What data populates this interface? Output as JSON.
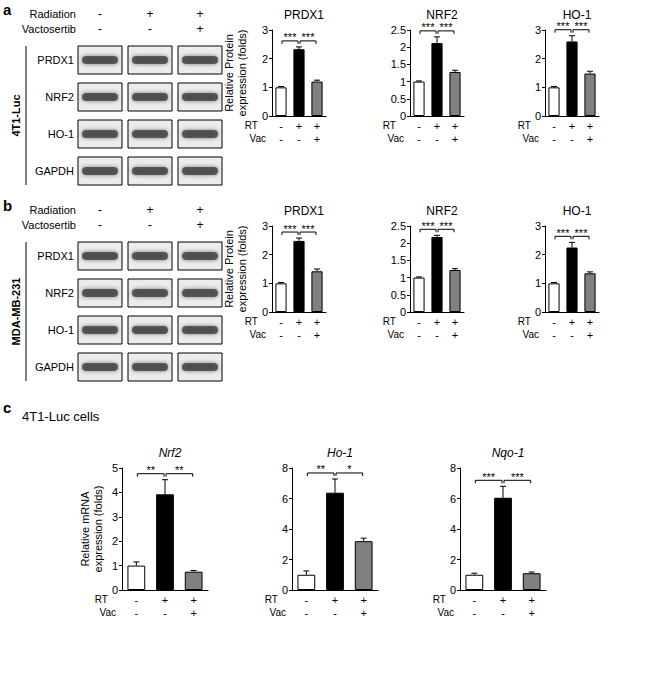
{
  "chart_data": [
    {
      "type": "bar",
      "title": "PRDX1",
      "ylabel": "Relative Protein expression (folds)",
      "x_label_rows": [
        {
          "label": "RT",
          "categories": [
            "-",
            "+",
            "+"
          ]
        },
        {
          "label": "Vac",
          "categories": [
            "-",
            "-",
            "+"
          ]
        }
      ],
      "values": [
        1.0,
        2.33,
        1.2
      ],
      "errors": [
        0.03,
        0.08,
        0.05
      ],
      "colors": [
        "#ffffff",
        "#000000",
        "#808080"
      ],
      "ylim": [
        0,
        3
      ],
      "yticks": [
        0,
        1,
        2,
        3
      ],
      "grid": false,
      "annotations": [
        {
          "from": 0,
          "to": 1,
          "label": "***"
        },
        {
          "from": 1,
          "to": 2,
          "label": "***"
        }
      ]
    },
    {
      "type": "bar",
      "title": "NRF2",
      "x_label_rows": [
        {
          "label": "RT",
          "categories": [
            "-",
            "+",
            "+"
          ]
        },
        {
          "label": "Vac",
          "categories": [
            "-",
            "-",
            "+"
          ]
        }
      ],
      "values": [
        1.0,
        2.12,
        1.28
      ],
      "errors": [
        0.02,
        0.18,
        0.05
      ],
      "colors": [
        "#ffffff",
        "#000000",
        "#808080"
      ],
      "ylim": [
        0,
        2.5
      ],
      "yticks": [
        0,
        0.5,
        1,
        1.5,
        2,
        2.5
      ],
      "grid": false,
      "annotations": [
        {
          "from": 0,
          "to": 1,
          "label": "***"
        },
        {
          "from": 1,
          "to": 2,
          "label": "***"
        }
      ]
    },
    {
      "type": "bar",
      "title": "HO-1",
      "x_label_rows": [
        {
          "label": "RT",
          "categories": [
            "-",
            "+",
            "+"
          ]
        },
        {
          "label": "Vac",
          "categories": [
            "-",
            "-",
            "+"
          ]
        }
      ],
      "values": [
        1.0,
        2.6,
        1.48
      ],
      "errors": [
        0.03,
        0.2,
        0.08
      ],
      "colors": [
        "#ffffff",
        "#000000",
        "#808080"
      ],
      "ylim": [
        0,
        3
      ],
      "yticks": [
        0,
        1,
        2,
        3
      ],
      "grid": false,
      "annotations": [
        {
          "from": 0,
          "to": 1,
          "label": "***"
        },
        {
          "from": 1,
          "to": 2,
          "label": "***"
        }
      ]
    },
    {
      "type": "bar",
      "title": "PRDX1",
      "ylabel": "Relative Protein expression (folds)",
      "x_label_rows": [
        {
          "label": "RT",
          "categories": [
            "-",
            "+",
            "+"
          ]
        },
        {
          "label": "Vac",
          "categories": [
            "-",
            "-",
            "+"
          ]
        }
      ],
      "values": [
        1.0,
        2.48,
        1.42
      ],
      "errors": [
        0.03,
        0.1,
        0.08
      ],
      "colors": [
        "#ffffff",
        "#000000",
        "#808080"
      ],
      "ylim": [
        0,
        3
      ],
      "yticks": [
        0,
        1,
        2,
        3
      ],
      "grid": false,
      "annotations": [
        {
          "from": 0,
          "to": 1,
          "label": "***"
        },
        {
          "from": 1,
          "to": 2,
          "label": "***"
        }
      ]
    },
    {
      "type": "bar",
      "title": "NRF2",
      "x_label_rows": [
        {
          "label": "RT",
          "categories": [
            "-",
            "+",
            "+"
          ]
        },
        {
          "label": "Vac",
          "categories": [
            "-",
            "-",
            "+"
          ]
        }
      ],
      "values": [
        1.0,
        2.18,
        1.22
      ],
      "errors": [
        0.02,
        0.05,
        0.04
      ],
      "colors": [
        "#ffffff",
        "#000000",
        "#808080"
      ],
      "ylim": [
        0,
        2.5
      ],
      "yticks": [
        0,
        0.5,
        1,
        1.5,
        2,
        2.5
      ],
      "grid": false,
      "annotations": [
        {
          "from": 0,
          "to": 1,
          "label": "***"
        },
        {
          "from": 1,
          "to": 2,
          "label": "***"
        }
      ]
    },
    {
      "type": "bar",
      "title": "HO-1",
      "x_label_rows": [
        {
          "label": "RT",
          "categories": [
            "-",
            "+",
            "+"
          ]
        },
        {
          "label": "Vac",
          "categories": [
            "-",
            "-",
            "+"
          ]
        }
      ],
      "values": [
        1.0,
        2.25,
        1.35
      ],
      "errors": [
        0.03,
        0.18,
        0.05
      ],
      "colors": [
        "#ffffff",
        "#000000",
        "#808080"
      ],
      "ylim": [
        0,
        3
      ],
      "yticks": [
        0,
        1,
        2,
        3
      ],
      "grid": false,
      "annotations": [
        {
          "from": 0,
          "to": 1,
          "label": "***"
        },
        {
          "from": 1,
          "to": 2,
          "label": "***"
        }
      ]
    },
    {
      "type": "bar",
      "title": "Nrf2",
      "ylabel": "Relative mRNA expression (folds)",
      "x_label_rows": [
        {
          "label": "RT",
          "categories": [
            "-",
            "+",
            "+"
          ]
        },
        {
          "label": "Vac",
          "categories": [
            "-",
            "-",
            "+"
          ]
        }
      ],
      "values": [
        1.0,
        3.92,
        0.75
      ],
      "errors": [
        0.15,
        0.6,
        0.05
      ],
      "colors": [
        "#ffffff",
        "#000000",
        "#808080"
      ],
      "ylim": [
        0,
        5
      ],
      "yticks": [
        0,
        1,
        2,
        3,
        4,
        5
      ],
      "grid": false,
      "annotations": [
        {
          "from": 0,
          "to": 1,
          "label": "**"
        },
        {
          "from": 1,
          "to": 2,
          "label": "**"
        }
      ]
    },
    {
      "type": "bar",
      "title": "Ho-1",
      "x_label_rows": [
        {
          "label": "RT",
          "categories": [
            "-",
            "+",
            "+"
          ]
        },
        {
          "label": "Vac",
          "categories": [
            "-",
            "-",
            "+"
          ]
        }
      ],
      "values": [
        1.0,
        6.38,
        3.2
      ],
      "errors": [
        0.25,
        0.9,
        0.2
      ],
      "colors": [
        "#ffffff",
        "#000000",
        "#808080"
      ],
      "ylim": [
        0,
        8
      ],
      "yticks": [
        0,
        2,
        4,
        6,
        8
      ],
      "grid": false,
      "annotations": [
        {
          "from": 0,
          "to": 1,
          "label": "**"
        },
        {
          "from": 1,
          "to": 2,
          "label": "*"
        }
      ]
    },
    {
      "type": "bar",
      "title": "Nqo-1",
      "x_label_rows": [
        {
          "label": "RT",
          "categories": [
            "-",
            "+",
            "+"
          ]
        },
        {
          "label": "Vac",
          "categories": [
            "-",
            "-",
            "+"
          ]
        }
      ],
      "values": [
        1.0,
        6.05,
        1.1
      ],
      "errors": [
        0.1,
        0.75,
        0.08
      ],
      "colors": [
        "#ffffff",
        "#000000",
        "#808080"
      ],
      "ylim": [
        0,
        8
      ],
      "yticks": [
        0,
        2,
        4,
        6,
        8
      ],
      "grid": false,
      "annotations": [
        {
          "from": 0,
          "to": 1,
          "label": "***"
        },
        {
          "from": 1,
          "to": 2,
          "label": "***"
        }
      ]
    }
  ],
  "panels": [
    {
      "label": "a",
      "cell_line": "4T1-Luc",
      "blot": {
        "treatments": [
          {
            "label": "Radiation",
            "marks": [
              "-",
              "+",
              "+"
            ]
          },
          {
            "label": "Vactosertib",
            "marks": [
              "-",
              "-",
              "+"
            ]
          }
        ],
        "rows": [
          "PRDX1",
          "NRF2",
          "HO-1",
          "GAPDH"
        ]
      }
    },
    {
      "label": "b",
      "cell_line": "MDA-MB-231",
      "blot": {
        "treatments": [
          {
            "label": "Radiation",
            "marks": [
              "-",
              "+",
              "+"
            ]
          },
          {
            "label": "Vactosertib",
            "marks": [
              "-",
              "-",
              "+"
            ]
          }
        ],
        "rows": [
          "PRDX1",
          "NRF2",
          "HO-1",
          "GAPDH"
        ]
      }
    },
    {
      "label": "c",
      "title": "4T1-Luc cells"
    }
  ]
}
